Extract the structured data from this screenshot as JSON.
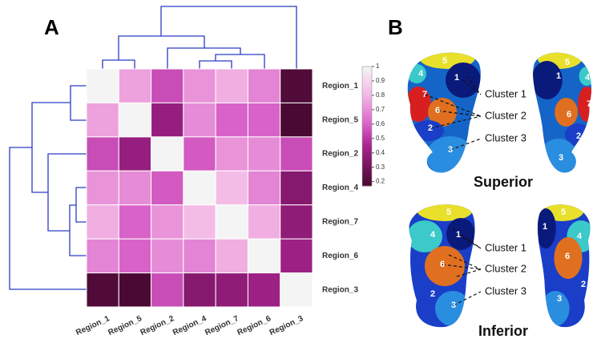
{
  "chart_data": {
    "type": "heatmap",
    "label": "A",
    "x": [
      "Region_1",
      "Region_5",
      "Region_2",
      "Region_4",
      "Region_7",
      "Region_6",
      "Region_3"
    ],
    "y": [
      "Region_1",
      "Region_5",
      "Region_2",
      "Region_4",
      "Region_7",
      "Region_6",
      "Region_3"
    ],
    "values": [
      [
        1,
        0.75,
        0.55,
        0.72,
        0.78,
        0.68,
        0.2
      ],
      [
        0.75,
        1,
        0.4,
        0.7,
        0.6,
        0.6,
        0.18
      ],
      [
        0.55,
        0.4,
        1,
        0.58,
        0.72,
        0.7,
        0.55
      ],
      [
        0.72,
        0.7,
        0.58,
        1,
        0.82,
        0.68,
        0.35
      ],
      [
        0.78,
        0.6,
        0.72,
        0.82,
        1,
        0.78,
        0.38
      ],
      [
        0.68,
        0.6,
        0.7,
        0.68,
        0.78,
        1,
        0.42
      ],
      [
        0.2,
        0.18,
        0.55,
        0.35,
        0.38,
        0.42,
        1
      ]
    ],
    "zlim": [
      0.17,
      1
    ],
    "zticks": [
      1,
      0.9,
      0.8,
      0.7,
      0.6,
      0.5,
      0.4,
      0.3,
      0.2
    ],
    "colorscale": [
      [
        0.17,
        "#45082f"
      ],
      [
        0.45,
        "#a8238f"
      ],
      [
        0.6,
        "#d962c9"
      ],
      [
        0.8,
        "#f3b6e4"
      ],
      [
        1,
        "#f4f4f4"
      ]
    ]
  },
  "panel_b": {
    "label": "B",
    "views": [
      {
        "title": "Superior",
        "clusters": [
          "Cluster 1",
          "Cluster 2",
          "Cluster 3"
        ],
        "left_regions": [
          "5",
          "1",
          "4",
          "7",
          "6",
          "2",
          "3"
        ],
        "right_regions": [
          "5",
          "1",
          "4",
          "7",
          "6",
          "2",
          "3"
        ]
      },
      {
        "title": "Inferior",
        "clusters": [
          "Cluster 1",
          "Cluster 2",
          "Cluster 3"
        ],
        "left_regions": [
          "5",
          "4",
          "1",
          "6",
          "2",
          "3"
        ],
        "right_regions": [
          "5",
          "1",
          "4",
          "6",
          "2",
          "3"
        ]
      }
    ]
  }
}
